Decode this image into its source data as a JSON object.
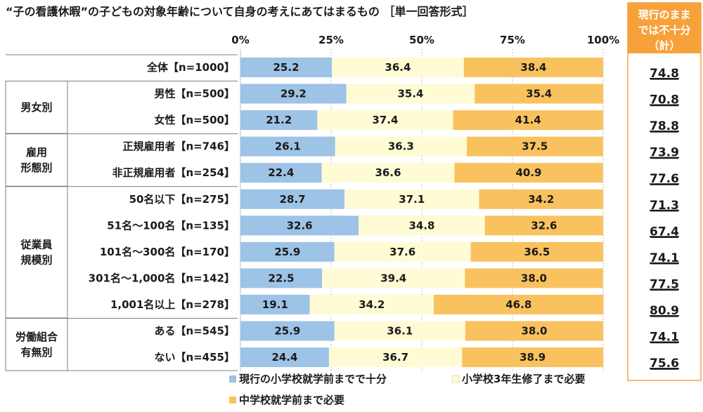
{
  "colors": {
    "series1": "#9dc3e6",
    "series2": "#fffbd5",
    "series3": "#f9c25f",
    "header_bg": "#f7a13b",
    "header_border": "#f7a13b",
    "panel_border": "#f7a13b"
  },
  "chart_data": {
    "type": "bar",
    "orientation": "horizontal",
    "stacked": true,
    "title": "“子の看護休暇”の子どもの対象年齢について自身の考えにあてはまるもの ［単一回答形式］",
    "xlim": [
      0,
      100
    ],
    "x_ticks": [
      "0%",
      "25%",
      "50%",
      "75%",
      "100%"
    ],
    "legend_position": "bottom",
    "categories": [
      "全体【n=1000】",
      "男性【n=500】",
      "女性【n=500】",
      "正規雇用者【n=746】",
      "非正規雇用者【n=254】",
      "50名以下【n=275】",
      "51名～100名【n=135】",
      "101名～300名【n=170】",
      "301名～1,000名【n=142】",
      "1,001名以上【n=278】",
      "ある【n=545】",
      "ない【n=455】"
    ],
    "series": [
      {
        "name": "現行の小学校就学前までで十分",
        "values": [
          25.2,
          29.2,
          21.2,
          26.1,
          22.4,
          28.7,
          32.6,
          25.9,
          22.5,
          19.1,
          25.9,
          24.4
        ]
      },
      {
        "name": "小学校3年生修了まで必要",
        "values": [
          36.4,
          35.4,
          37.4,
          36.3,
          36.6,
          37.1,
          34.8,
          37.6,
          39.4,
          34.2,
          36.1,
          36.7
        ]
      },
      {
        "name": "中学校就学前まで必要",
        "values": [
          38.4,
          35.4,
          41.4,
          37.5,
          40.9,
          34.2,
          32.6,
          36.5,
          38.0,
          46.8,
          38.0,
          38.9
        ]
      }
    ],
    "groups": [
      {
        "label_lines": [
          "男女別"
        ],
        "first": 1,
        "last": 2
      },
      {
        "label_lines": [
          "雇用",
          "形態別"
        ],
        "first": 3,
        "last": 4
      },
      {
        "label_lines": [
          "従業員",
          "規模別"
        ],
        "first": 5,
        "last": 9
      },
      {
        "label_lines": [
          "労働組合",
          "有無別"
        ],
        "first": 10,
        "last": 11
      }
    ],
    "side_panel": {
      "header_lines": [
        "現行のまま",
        "では不十分",
        "（計）"
      ],
      "values": [
        "74.8",
        "70.8",
        "78.8",
        "73.9",
        "77.6",
        "71.3",
        "67.4",
        "74.1",
        "77.5",
        "80.9",
        "74.1",
        "75.6"
      ]
    }
  }
}
